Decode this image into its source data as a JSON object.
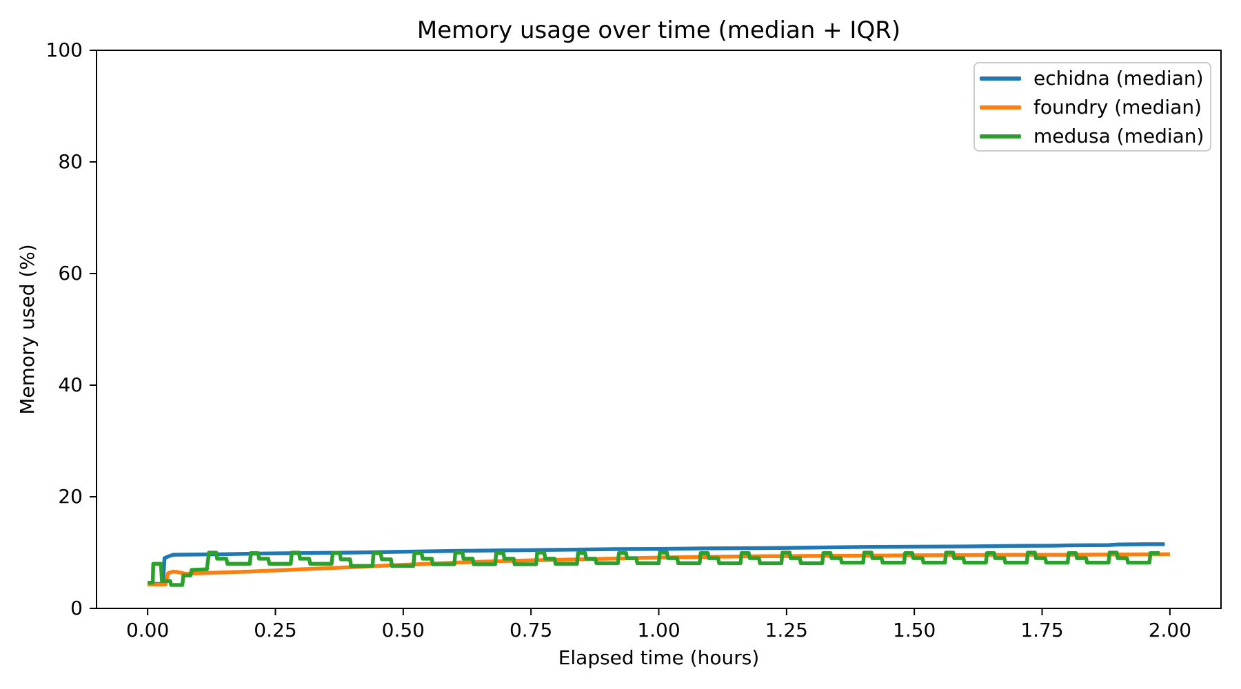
{
  "page": {
    "background": "#ffffff"
  },
  "chart_data": {
    "type": "line",
    "title": "Memory usage over time (median + IQR)",
    "xlabel": "Elapsed time (hours)",
    "ylabel": "Memory used (%)",
    "xlim": [
      -0.1,
      2.1
    ],
    "ylim": [
      0,
      100
    ],
    "grid": false,
    "x_ticks": [
      {
        "value": 0.0,
        "label": "0.00"
      },
      {
        "value": 0.25,
        "label": "0.25"
      },
      {
        "value": 0.5,
        "label": "0.50"
      },
      {
        "value": 0.75,
        "label": "0.75"
      },
      {
        "value": 1.0,
        "label": "1.00"
      },
      {
        "value": 1.25,
        "label": "1.25"
      },
      {
        "value": 1.5,
        "label": "1.50"
      },
      {
        "value": 1.75,
        "label": "1.75"
      },
      {
        "value": 2.0,
        "label": "2.00"
      }
    ],
    "y_ticks": [
      {
        "value": 0,
        "label": "0"
      },
      {
        "value": 20,
        "label": "20"
      },
      {
        "value": 40,
        "label": "40"
      },
      {
        "value": 60,
        "label": "60"
      },
      {
        "value": 80,
        "label": "80"
      },
      {
        "value": 100,
        "label": "100"
      }
    ],
    "legend": {
      "position": "upper right",
      "entries": [
        {
          "label": "echidna (median)",
          "color": "#1f77b4"
        },
        {
          "label": "foundry (median)",
          "color": "#ff7f0e"
        },
        {
          "label": "medusa (median)",
          "color": "#2ca02c"
        }
      ]
    },
    "series": [
      {
        "id": "echidna",
        "name": "echidna (median)",
        "color": "#1f77b4",
        "points": [
          [
            0.0,
            4.4
          ],
          [
            0.03,
            4.4
          ],
          [
            0.033,
            9.0
          ],
          [
            0.04,
            9.3
          ],
          [
            0.05,
            9.6
          ],
          [
            0.1,
            9.65
          ],
          [
            0.15,
            9.7
          ],
          [
            0.2,
            9.8
          ],
          [
            0.3,
            9.9
          ],
          [
            0.4,
            10.0
          ],
          [
            0.5,
            10.15
          ],
          [
            0.6,
            10.3
          ],
          [
            0.7,
            10.4
          ],
          [
            0.8,
            10.5
          ],
          [
            0.9,
            10.6
          ],
          [
            1.0,
            10.65
          ],
          [
            1.1,
            10.75
          ],
          [
            1.2,
            10.8
          ],
          [
            1.3,
            10.9
          ],
          [
            1.4,
            11.0
          ],
          [
            1.5,
            11.05
          ],
          [
            1.6,
            11.1
          ],
          [
            1.7,
            11.2
          ],
          [
            1.78,
            11.25
          ],
          [
            1.8,
            11.3
          ],
          [
            1.88,
            11.35
          ],
          [
            1.9,
            11.45
          ],
          [
            1.95,
            11.5
          ],
          [
            1.99,
            11.5
          ]
        ]
      },
      {
        "id": "foundry",
        "name": "foundry (median)",
        "color": "#ff7f0e",
        "points": [
          [
            0.0,
            4.3
          ],
          [
            0.035,
            4.3
          ],
          [
            0.04,
            6.3
          ],
          [
            0.05,
            6.6
          ],
          [
            0.06,
            6.5
          ],
          [
            0.075,
            6.2
          ],
          [
            0.1,
            6.3
          ],
          [
            0.15,
            6.45
          ],
          [
            0.2,
            6.6
          ],
          [
            0.25,
            6.8
          ],
          [
            0.3,
            7.0
          ],
          [
            0.35,
            7.2
          ],
          [
            0.4,
            7.4
          ],
          [
            0.45,
            7.6
          ],
          [
            0.5,
            7.8
          ],
          [
            0.55,
            8.0
          ],
          [
            0.6,
            8.2
          ],
          [
            0.65,
            8.35
          ],
          [
            0.7,
            8.5
          ],
          [
            0.75,
            8.6
          ],
          [
            0.8,
            8.7
          ],
          [
            0.85,
            8.8
          ],
          [
            0.9,
            8.9
          ],
          [
            0.95,
            9.0
          ],
          [
            1.0,
            9.1
          ],
          [
            1.1,
            9.25
          ],
          [
            1.2,
            9.35
          ],
          [
            1.3,
            9.4
          ],
          [
            1.4,
            9.45
          ],
          [
            1.5,
            9.5
          ],
          [
            1.6,
            9.55
          ],
          [
            1.7,
            9.6
          ],
          [
            1.8,
            9.6
          ],
          [
            1.9,
            9.65
          ],
          [
            2.0,
            9.7
          ]
        ]
      },
      {
        "id": "medusa",
        "name": "medusa (median)",
        "color": "#2ca02c",
        "points": [
          [
            0.0,
            4.6
          ],
          [
            0.01,
            4.6
          ],
          [
            0.011,
            8.0
          ],
          [
            0.026,
            8.0
          ],
          [
            0.028,
            4.9
          ],
          [
            0.044,
            4.9
          ],
          [
            0.046,
            4.2
          ],
          [
            0.068,
            4.2
          ],
          [
            0.07,
            5.9
          ],
          [
            0.084,
            5.9
          ],
          [
            0.086,
            6.9
          ],
          [
            0.116,
            7.0
          ],
          [
            0.12,
            10.0
          ],
          [
            0.134,
            10.0
          ],
          [
            0.136,
            8.9
          ],
          [
            0.154,
            8.9
          ],
          [
            0.156,
            8.0
          ],
          [
            0.2,
            8.0
          ],
          [
            0.202,
            9.9
          ],
          [
            0.216,
            9.9
          ],
          [
            0.218,
            8.9
          ],
          [
            0.236,
            8.9
          ],
          [
            0.238,
            8.0
          ],
          [
            0.28,
            8.0
          ],
          [
            0.282,
            10.0
          ],
          [
            0.296,
            10.0
          ],
          [
            0.298,
            8.9
          ],
          [
            0.316,
            8.9
          ],
          [
            0.318,
            8.0
          ],
          [
            0.36,
            8.0
          ],
          [
            0.362,
            9.9
          ],
          [
            0.376,
            9.9
          ],
          [
            0.378,
            8.8
          ],
          [
            0.396,
            8.8
          ],
          [
            0.398,
            7.6
          ],
          [
            0.44,
            7.6
          ],
          [
            0.442,
            9.9
          ],
          [
            0.456,
            9.9
          ],
          [
            0.458,
            8.8
          ],
          [
            0.476,
            8.8
          ],
          [
            0.478,
            7.6
          ],
          [
            0.52,
            7.6
          ],
          [
            0.522,
            9.9
          ],
          [
            0.536,
            9.9
          ],
          [
            0.538,
            8.9
          ],
          [
            0.556,
            8.9
          ],
          [
            0.558,
            7.9
          ],
          [
            0.6,
            7.9
          ],
          [
            0.602,
            10.0
          ],
          [
            0.616,
            10.0
          ],
          [
            0.618,
            8.9
          ],
          [
            0.636,
            8.9
          ],
          [
            0.638,
            7.9
          ],
          [
            0.68,
            7.9
          ],
          [
            0.682,
            9.9
          ],
          [
            0.696,
            9.9
          ],
          [
            0.698,
            8.9
          ],
          [
            0.716,
            8.9
          ],
          [
            0.718,
            7.9
          ],
          [
            0.76,
            7.9
          ],
          [
            0.762,
            10.0
          ],
          [
            0.776,
            10.0
          ],
          [
            0.778,
            8.9
          ],
          [
            0.796,
            8.9
          ],
          [
            0.798,
            8.0
          ],
          [
            0.84,
            8.0
          ],
          [
            0.842,
            9.9
          ],
          [
            0.856,
            9.9
          ],
          [
            0.858,
            8.9
          ],
          [
            0.876,
            8.9
          ],
          [
            0.878,
            8.1
          ],
          [
            0.92,
            8.1
          ],
          [
            0.922,
            9.9
          ],
          [
            0.936,
            9.9
          ],
          [
            0.938,
            9.0
          ],
          [
            0.956,
            9.0
          ],
          [
            0.958,
            8.1
          ],
          [
            1.0,
            8.1
          ],
          [
            1.002,
            10.0
          ],
          [
            1.016,
            10.0
          ],
          [
            1.018,
            9.0
          ],
          [
            1.036,
            9.0
          ],
          [
            1.038,
            8.1
          ],
          [
            1.08,
            8.1
          ],
          [
            1.082,
            9.9
          ],
          [
            1.096,
            9.9
          ],
          [
            1.098,
            9.0
          ],
          [
            1.116,
            9.0
          ],
          [
            1.118,
            8.1
          ],
          [
            1.16,
            8.1
          ],
          [
            1.162,
            9.9
          ],
          [
            1.176,
            9.9
          ],
          [
            1.178,
            9.0
          ],
          [
            1.196,
            9.0
          ],
          [
            1.198,
            8.1
          ],
          [
            1.24,
            8.1
          ],
          [
            1.242,
            10.0
          ],
          [
            1.256,
            10.0
          ],
          [
            1.258,
            9.0
          ],
          [
            1.276,
            9.0
          ],
          [
            1.278,
            8.1
          ],
          [
            1.32,
            8.1
          ],
          [
            1.322,
            9.9
          ],
          [
            1.336,
            9.9
          ],
          [
            1.338,
            9.0
          ],
          [
            1.356,
            9.0
          ],
          [
            1.358,
            8.2
          ],
          [
            1.4,
            8.2
          ],
          [
            1.402,
            10.0
          ],
          [
            1.416,
            10.0
          ],
          [
            1.418,
            9.0
          ],
          [
            1.436,
            9.0
          ],
          [
            1.438,
            8.2
          ],
          [
            1.48,
            8.2
          ],
          [
            1.482,
            9.9
          ],
          [
            1.496,
            9.9
          ],
          [
            1.498,
            9.0
          ],
          [
            1.516,
            9.0
          ],
          [
            1.518,
            8.2
          ],
          [
            1.56,
            8.2
          ],
          [
            1.562,
            10.0
          ],
          [
            1.576,
            10.0
          ],
          [
            1.578,
            9.0
          ],
          [
            1.596,
            9.0
          ],
          [
            1.598,
            8.2
          ],
          [
            1.64,
            8.2
          ],
          [
            1.642,
            9.9
          ],
          [
            1.656,
            9.9
          ],
          [
            1.658,
            9.0
          ],
          [
            1.676,
            9.0
          ],
          [
            1.678,
            8.2
          ],
          [
            1.72,
            8.2
          ],
          [
            1.722,
            10.0
          ],
          [
            1.736,
            10.0
          ],
          [
            1.738,
            9.0
          ],
          [
            1.756,
            9.0
          ],
          [
            1.758,
            8.2
          ],
          [
            1.8,
            8.2
          ],
          [
            1.802,
            9.9
          ],
          [
            1.816,
            9.9
          ],
          [
            1.818,
            9.0
          ],
          [
            1.836,
            9.0
          ],
          [
            1.838,
            8.2
          ],
          [
            1.88,
            8.2
          ],
          [
            1.882,
            10.0
          ],
          [
            1.896,
            10.0
          ],
          [
            1.898,
            9.0
          ],
          [
            1.916,
            9.0
          ],
          [
            1.918,
            8.2
          ],
          [
            1.96,
            8.2
          ],
          [
            1.962,
            9.9
          ],
          [
            1.98,
            9.9
          ]
        ]
      }
    ]
  }
}
